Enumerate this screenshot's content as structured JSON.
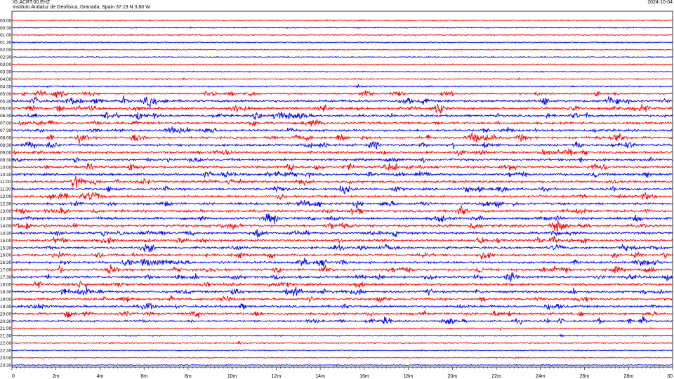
{
  "header": {
    "station": "IG.ACRT.00.EHZ",
    "institute": "Instituto Andaluz de Geofisica, Granada, Spain  37.19 N 3.60 W",
    "date": "2024-10-04"
  },
  "chart_data": {
    "type": "line",
    "title": "IG.ACRT.00.EHZ",
    "xlabel": "",
    "ylabel": "",
    "x_ticks": [
      "0",
      "2m",
      "4m",
      "6m",
      "8m",
      "10m",
      "12m",
      "14m",
      "16m",
      "18m",
      "20m",
      "22m",
      "24m",
      "26m",
      "28m",
      "30"
    ],
    "xlim": [
      0,
      30
    ],
    "row_labels": [
      "00:00",
      "00:30",
      "01:00",
      "01:30",
      "02:00",
      "02:30",
      "03:00",
      "03:30",
      "04:00",
      "04:30",
      "05:00",
      "05:30",
      "06:00",
      "06:30",
      "07:00",
      "07:30",
      "08:00",
      "08:30",
      "09:00",
      "09:30",
      "10:00",
      "10:30",
      "11:00",
      "11:30",
      "12:00",
      "12:30",
      "13:00",
      "13:30",
      "14:00",
      "14:30",
      "15:00",
      "15:30",
      "16:00",
      "16:30",
      "17:00",
      "17:30",
      "18:00",
      "18:30",
      "19:00",
      "19:30",
      "20:00",
      "20:30",
      "21:00",
      "21:30",
      "22:00",
      "22:30",
      "23:00",
      "23:30"
    ],
    "colors": [
      "#ff0000",
      "#0000ff"
    ],
    "trace_activity": [
      0.25,
      0.25,
      0.25,
      0.25,
      0.25,
      0.25,
      0.25,
      0.25,
      0.3,
      0.35,
      0.5,
      1.0,
      1.0,
      1.0,
      1.0,
      1.0,
      1.0,
      1.0,
      1.0,
      1.0,
      1.0,
      1.0,
      1.0,
      1.0,
      1.0,
      1.0,
      1.0,
      1.0,
      1.0,
      1.0,
      1.0,
      1.0,
      1.0,
      1.0,
      1.0,
      1.0,
      1.0,
      1.0,
      1.0,
      1.0,
      1.0,
      0.7,
      0.35,
      0.3,
      0.3,
      0.25,
      0.25,
      0.25
    ],
    "grid": false,
    "legend": "none"
  }
}
